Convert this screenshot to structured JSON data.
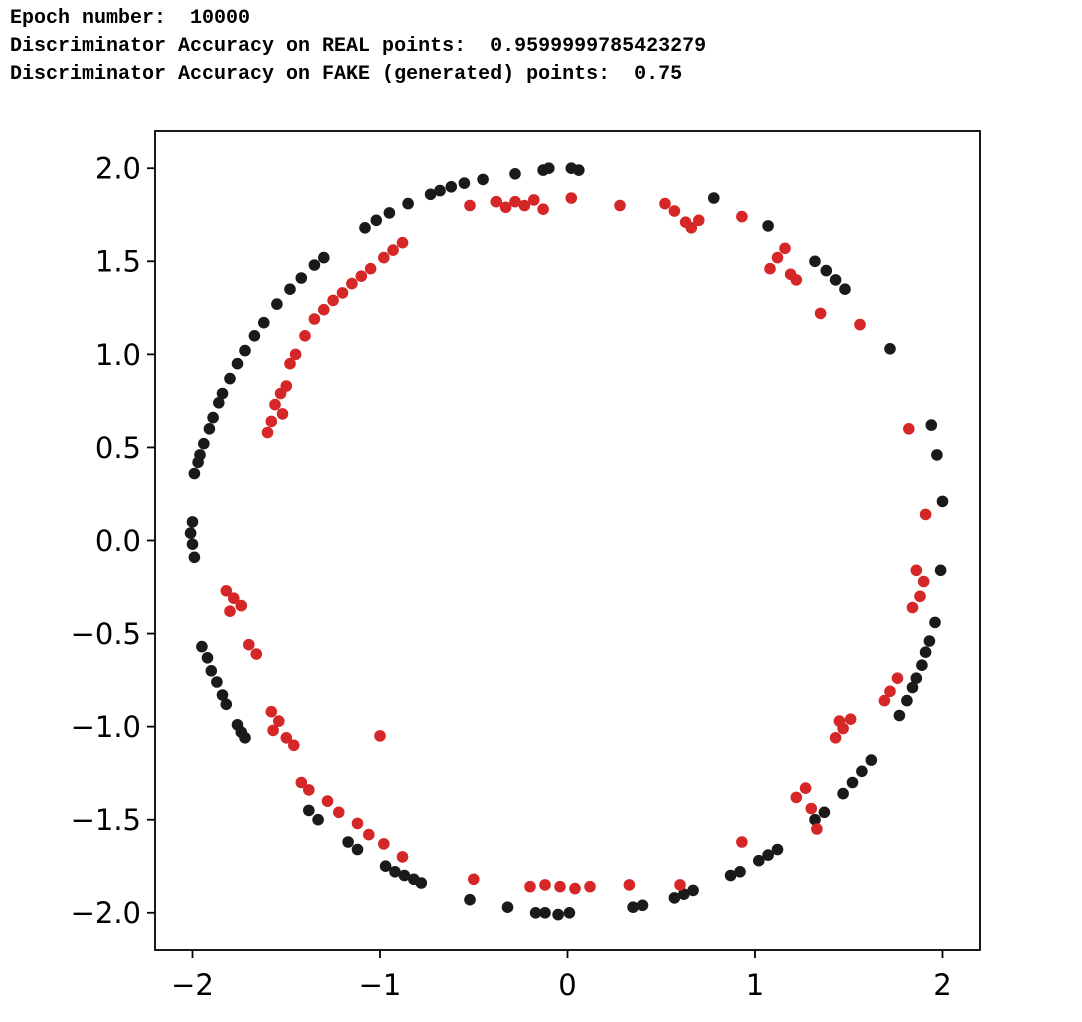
{
  "header": {
    "line1": "Epoch number:  10000",
    "line2": "Discriminator Accuracy on REAL points:  0.9599999785423279",
    "line3": "Discriminator Accuracy on FAKE (generated) points:  0.75"
  },
  "chart_data": {
    "type": "scatter",
    "title": "",
    "xlabel": "",
    "ylabel": "",
    "xlim": [
      -2.2,
      2.2
    ],
    "ylim": [
      -2.2,
      2.2
    ],
    "grid": false,
    "legend": "none",
    "x_ticks": [
      {
        "v": -2,
        "label": "−2"
      },
      {
        "v": -1,
        "label": "−1"
      },
      {
        "v": 0,
        "label": "0"
      },
      {
        "v": 1,
        "label": "1"
      },
      {
        "v": 2,
        "label": "2"
      }
    ],
    "y_ticks": [
      {
        "v": 2.0,
        "label": "2.0"
      },
      {
        "v": 1.5,
        "label": "1.5"
      },
      {
        "v": 1.0,
        "label": "1.0"
      },
      {
        "v": 0.5,
        "label": "0.5"
      },
      {
        "v": 0.0,
        "label": "0.0"
      },
      {
        "v": -0.5,
        "label": "−0.5"
      },
      {
        "v": -1.0,
        "label": "−1.0"
      },
      {
        "v": -1.5,
        "label": "−1.5"
      },
      {
        "v": -2.0,
        "label": "−2.0"
      }
    ],
    "marker_radius": 5.8,
    "series": [
      {
        "name": "real",
        "color": "#1a1a1a",
        "points": [
          [
            0.02,
            2.0
          ],
          [
            0.06,
            1.99
          ],
          [
            -0.1,
            2.0
          ],
          [
            -0.13,
            1.99
          ],
          [
            -0.28,
            1.97
          ],
          [
            -0.45,
            1.94
          ],
          [
            -0.55,
            1.92
          ],
          [
            -0.62,
            1.9
          ],
          [
            -0.68,
            1.88
          ],
          [
            -0.73,
            1.86
          ],
          [
            -0.85,
            1.81
          ],
          [
            -0.95,
            1.76
          ],
          [
            -1.02,
            1.72
          ],
          [
            -1.08,
            1.68
          ],
          [
            -1.3,
            1.52
          ],
          [
            -1.35,
            1.48
          ],
          [
            -1.42,
            1.41
          ],
          [
            -1.48,
            1.35
          ],
          [
            -1.55,
            1.27
          ],
          [
            -1.62,
            1.17
          ],
          [
            -1.67,
            1.1
          ],
          [
            -1.72,
            1.02
          ],
          [
            -1.76,
            0.95
          ],
          [
            -1.8,
            0.87
          ],
          [
            -1.84,
            0.79
          ],
          [
            -1.86,
            0.74
          ],
          [
            -1.89,
            0.66
          ],
          [
            -1.91,
            0.6
          ],
          [
            -1.94,
            0.52
          ],
          [
            -1.96,
            0.46
          ],
          [
            -1.97,
            0.42
          ],
          [
            -1.99,
            0.36
          ],
          [
            -2.0,
            0.1
          ],
          [
            -2.01,
            0.04
          ],
          [
            -2.0,
            -0.02
          ],
          [
            -1.99,
            -0.09
          ],
          [
            -1.95,
            -0.57
          ],
          [
            -1.92,
            -0.63
          ],
          [
            -1.9,
            -0.7
          ],
          [
            -1.87,
            -0.76
          ],
          [
            -1.84,
            -0.83
          ],
          [
            -1.82,
            -0.88
          ],
          [
            -1.76,
            -0.99
          ],
          [
            -1.74,
            -1.03
          ],
          [
            -1.72,
            -1.06
          ],
          [
            -1.38,
            -1.45
          ],
          [
            -1.33,
            -1.5
          ],
          [
            -1.17,
            -1.62
          ],
          [
            -1.12,
            -1.66
          ],
          [
            -0.97,
            -1.75
          ],
          [
            -0.92,
            -1.78
          ],
          [
            -0.87,
            -1.8
          ],
          [
            -0.82,
            -1.82
          ],
          [
            -0.78,
            -1.84
          ],
          [
            -0.52,
            -1.93
          ],
          [
            -0.32,
            -1.97
          ],
          [
            -0.17,
            -2.0
          ],
          [
            -0.12,
            -2.0
          ],
          [
            -0.05,
            -2.01
          ],
          [
            0.01,
            -2.0
          ],
          [
            0.35,
            -1.97
          ],
          [
            0.4,
            -1.96
          ],
          [
            0.57,
            -1.92
          ],
          [
            0.62,
            -1.9
          ],
          [
            0.67,
            -1.88
          ],
          [
            0.87,
            -1.8
          ],
          [
            0.92,
            -1.78
          ],
          [
            1.02,
            -1.72
          ],
          [
            1.07,
            -1.69
          ],
          [
            1.12,
            -1.66
          ],
          [
            1.32,
            -1.5
          ],
          [
            1.37,
            -1.46
          ],
          [
            1.47,
            -1.36
          ],
          [
            1.52,
            -1.3
          ],
          [
            1.57,
            -1.24
          ],
          [
            1.62,
            -1.18
          ],
          [
            1.77,
            -0.94
          ],
          [
            1.81,
            -0.86
          ],
          [
            1.84,
            -0.79
          ],
          [
            1.86,
            -0.74
          ],
          [
            1.89,
            -0.67
          ],
          [
            1.91,
            -0.6
          ],
          [
            1.93,
            -0.54
          ],
          [
            1.96,
            -0.44
          ],
          [
            1.99,
            -0.16
          ],
          [
            2.0,
            0.21
          ],
          [
            1.97,
            0.46
          ],
          [
            1.94,
            0.62
          ],
          [
            1.72,
            1.03
          ],
          [
            1.48,
            1.35
          ],
          [
            1.43,
            1.4
          ],
          [
            1.38,
            1.45
          ],
          [
            1.32,
            1.5
          ],
          [
            1.07,
            1.69
          ],
          [
            0.78,
            1.84
          ]
        ]
      },
      {
        "name": "generated",
        "color": "#d62728",
        "points": [
          [
            -0.52,
            1.8
          ],
          [
            -0.38,
            1.82
          ],
          [
            -0.33,
            1.79
          ],
          [
            -0.28,
            1.82
          ],
          [
            -0.23,
            1.8
          ],
          [
            -0.18,
            1.83
          ],
          [
            -0.13,
            1.78
          ],
          [
            0.02,
            1.84
          ],
          [
            0.28,
            1.8
          ],
          [
            0.52,
            1.81
          ],
          [
            0.57,
            1.77
          ],
          [
            0.63,
            1.71
          ],
          [
            0.66,
            1.68
          ],
          [
            0.7,
            1.72
          ],
          [
            0.93,
            1.74
          ],
          [
            1.08,
            1.46
          ],
          [
            1.12,
            1.52
          ],
          [
            1.16,
            1.57
          ],
          [
            1.19,
            1.43
          ],
          [
            1.22,
            1.4
          ],
          [
            1.35,
            1.22
          ],
          [
            1.56,
            1.16
          ],
          [
            -0.88,
            1.6
          ],
          [
            -0.93,
            1.56
          ],
          [
            -0.98,
            1.52
          ],
          [
            -1.05,
            1.46
          ],
          [
            -1.1,
            1.42
          ],
          [
            -1.15,
            1.38
          ],
          [
            -1.2,
            1.33
          ],
          [
            -1.25,
            1.29
          ],
          [
            -1.3,
            1.24
          ],
          [
            -1.35,
            1.19
          ],
          [
            -1.4,
            1.1
          ],
          [
            -1.45,
            1.0
          ],
          [
            -1.48,
            0.95
          ],
          [
            -1.5,
            0.83
          ],
          [
            -1.53,
            0.79
          ],
          [
            -1.56,
            0.73
          ],
          [
            -1.52,
            0.68
          ],
          [
            -1.58,
            0.64
          ],
          [
            -1.6,
            0.58
          ],
          [
            -1.82,
            -0.27
          ],
          [
            -1.78,
            -0.31
          ],
          [
            -1.74,
            -0.35
          ],
          [
            -1.8,
            -0.38
          ],
          [
            -1.7,
            -0.56
          ],
          [
            -1.66,
            -0.61
          ],
          [
            -1.58,
            -0.92
          ],
          [
            -1.54,
            -0.97
          ],
          [
            -1.57,
            -1.02
          ],
          [
            -1.5,
            -1.06
          ],
          [
            -1.46,
            -1.1
          ],
          [
            -1.0,
            -1.05
          ],
          [
            -1.42,
            -1.3
          ],
          [
            -1.38,
            -1.34
          ],
          [
            -1.28,
            -1.4
          ],
          [
            -1.22,
            -1.46
          ],
          [
            -1.12,
            -1.52
          ],
          [
            -1.06,
            -1.58
          ],
          [
            -0.98,
            -1.63
          ],
          [
            -0.88,
            -1.7
          ],
          [
            -0.5,
            -1.82
          ],
          [
            -0.2,
            -1.86
          ],
          [
            -0.12,
            -1.85
          ],
          [
            -0.04,
            -1.86
          ],
          [
            0.04,
            -1.87
          ],
          [
            0.12,
            -1.86
          ],
          [
            0.33,
            -1.85
          ],
          [
            0.6,
            -1.85
          ],
          [
            0.93,
            -1.62
          ],
          [
            1.22,
            -1.38
          ],
          [
            1.27,
            -1.33
          ],
          [
            1.3,
            -1.44
          ],
          [
            1.33,
            -1.55
          ],
          [
            1.43,
            -1.06
          ],
          [
            1.47,
            -1.01
          ],
          [
            1.51,
            -0.96
          ],
          [
            1.45,
            -0.97
          ],
          [
            1.72,
            -0.81
          ],
          [
            1.76,
            -0.74
          ],
          [
            1.69,
            -0.86
          ],
          [
            1.84,
            -0.36
          ],
          [
            1.88,
            -0.3
          ],
          [
            1.9,
            -0.22
          ],
          [
            1.86,
            -0.16
          ],
          [
            1.91,
            0.14
          ],
          [
            1.82,
            0.6
          ]
        ]
      }
    ]
  }
}
